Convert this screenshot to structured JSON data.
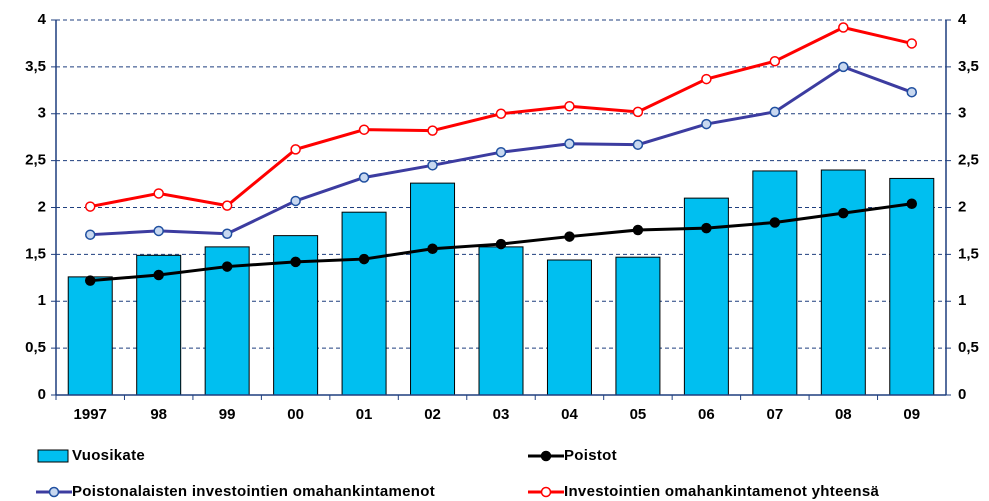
{
  "chart_data": {
    "type": "bar",
    "categories": [
      "1997",
      "98",
      "99",
      "00",
      "01",
      "02",
      "03",
      "04",
      "05",
      "06",
      "07",
      "08",
      "09"
    ],
    "series": [
      {
        "name": "Vuosikate",
        "type": "bar",
        "color": "#00bff0",
        "values": [
          1.26,
          1.49,
          1.58,
          1.7,
          1.95,
          2.26,
          1.58,
          1.44,
          1.47,
          2.1,
          2.39,
          2.4,
          2.31
        ]
      },
      {
        "name": "Poistot",
        "type": "line",
        "color": "#000000",
        "values": [
          1.22,
          1.28,
          1.37,
          1.42,
          1.45,
          1.56,
          1.61,
          1.69,
          1.76,
          1.78,
          1.84,
          1.94,
          2.04
        ]
      },
      {
        "name": "Poistonalaisten investointien omahankintamenot",
        "type": "line",
        "color": "#3c3ca0",
        "values": [
          1.71,
          1.75,
          1.72,
          2.07,
          2.32,
          2.45,
          2.59,
          2.68,
          2.67,
          2.89,
          3.02,
          3.5,
          3.23
        ]
      },
      {
        "name": "Investointien omahankintamenot yhteensä",
        "type": "line",
        "color": "#ff0000",
        "values": [
          2.01,
          2.15,
          2.02,
          2.62,
          2.83,
          2.82,
          3.0,
          3.08,
          3.02,
          3.37,
          3.56,
          3.92,
          3.75
        ]
      }
    ],
    "ylim": [
      0,
      4
    ],
    "yticks": [
      0,
      {
        "value": 0.5,
        "label": "0,5"
      },
      1,
      {
        "value": 1.5,
        "label": "1,5"
      },
      2,
      {
        "value": 2.5,
        "label": "2,5"
      },
      3,
      {
        "value": 3.5,
        "label": "3,5"
      },
      4
    ],
    "y2lim": [
      0,
      4
    ],
    "y2ticks": [
      0,
      {
        "value": 0.5,
        "label": "0,5"
      },
      1,
      {
        "value": 1.5,
        "label": "1,5"
      },
      2,
      {
        "value": 2.5,
        "label": "2,5"
      },
      3,
      {
        "value": 3.5,
        "label": "3,5"
      },
      4
    ],
    "grid": true
  }
}
